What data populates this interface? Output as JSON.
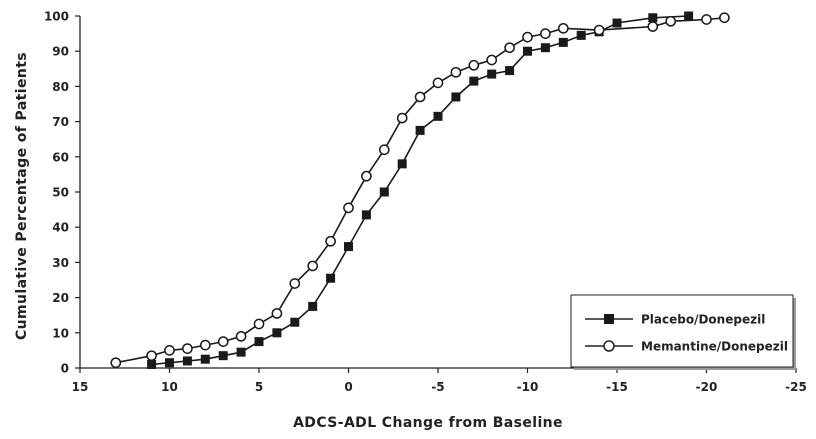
{
  "chart_data": {
    "type": "line",
    "title": "",
    "xlabel": "ADCS-ADL Change from Baseline",
    "ylabel": "Cumulative Percentage of Patients",
    "xlim": [
      15,
      -25
    ],
    "ylim": [
      0,
      100
    ],
    "x_reversed": true,
    "xticks": [
      15,
      10,
      5,
      0,
      -5,
      -10,
      -15,
      -20,
      -25
    ],
    "xtick_labels": [
      "15",
      "10",
      "5",
      "0",
      "-5",
      "-10",
      "-15",
      "-20",
      "-25"
    ],
    "yticks": [
      0,
      10,
      20,
      30,
      40,
      50,
      60,
      70,
      80,
      90,
      100
    ],
    "ytick_labels": [
      "0",
      "10",
      "20",
      "30",
      "40",
      "50",
      "60",
      "70",
      "80",
      "90",
      "100"
    ],
    "grid": false,
    "legend_position": "bottom-right",
    "series": [
      {
        "name": "Placebo/Donepezil",
        "marker": "filled-square",
        "color": "#1a1a1a",
        "points": [
          [
            11,
            1
          ],
          [
            10,
            1.5
          ],
          [
            9,
            2
          ],
          [
            8,
            2.5
          ],
          [
            7,
            3.5
          ],
          [
            6,
            4.5
          ],
          [
            5,
            7.5
          ],
          [
            4,
            10
          ],
          [
            3,
            13
          ],
          [
            2,
            17.5
          ],
          [
            1,
            25.5
          ],
          [
            0,
            34.5
          ],
          [
            -1,
            43.5
          ],
          [
            -2,
            50
          ],
          [
            -3,
            58
          ],
          [
            -4,
            67.5
          ],
          [
            -5,
            71.5
          ],
          [
            -6,
            77
          ],
          [
            -7,
            81.5
          ],
          [
            -8,
            83.5
          ],
          [
            -9,
            84.5
          ],
          [
            -10,
            90
          ],
          [
            -11,
            91
          ],
          [
            -12,
            92.5
          ],
          [
            -13,
            94.5
          ],
          [
            -14,
            95.5
          ],
          [
            -15,
            98
          ],
          [
            -17,
            99.5
          ],
          [
            -19,
            100
          ]
        ]
      },
      {
        "name": "Memantine/Donepezil",
        "marker": "open-circle",
        "color": "#1a1a1a",
        "points": [
          [
            13,
            1.5
          ],
          [
            11,
            3.5
          ],
          [
            10,
            5
          ],
          [
            9,
            5.5
          ],
          [
            8,
            6.5
          ],
          [
            7,
            7.5
          ],
          [
            6,
            9
          ],
          [
            5,
            12.5
          ],
          [
            4,
            15.5
          ],
          [
            3,
            24
          ],
          [
            2,
            29
          ],
          [
            1,
            36
          ],
          [
            0,
            45.5
          ],
          [
            -1,
            54.5
          ],
          [
            -2,
            62
          ],
          [
            -3,
            71
          ],
          [
            -4,
            77
          ],
          [
            -5,
            81
          ],
          [
            -6,
            84
          ],
          [
            -7,
            86
          ],
          [
            -8,
            87.5
          ],
          [
            -9,
            91
          ],
          [
            -10,
            94
          ],
          [
            -11,
            95
          ],
          [
            -12,
            96.5
          ],
          [
            -14,
            96
          ],
          [
            -17,
            97
          ],
          [
            -18,
            98.5
          ],
          [
            -20,
            99
          ],
          [
            -21,
            99.5
          ]
        ]
      }
    ]
  }
}
